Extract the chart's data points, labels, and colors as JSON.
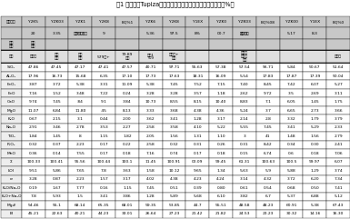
{
  "title": "表1 玻利维亚Tupiza铜矿火山岩主量元素组成及其特征参数（%）",
  "sample_row1": [
    "岩性编号",
    "Y2K5",
    "YZK03",
    "YZK1",
    "Y2K8",
    "BQ%1",
    "YZK6",
    "Y2K8",
    "Y1EX",
    "YZK0",
    "YZK03",
    "BQ%08",
    "YZK00",
    "Y1EX",
    "BQ%0"
  ],
  "sample_row2": [
    "",
    "20",
    "3.35",
    "9.13",
    "9",
    "",
    "5.36",
    "97.5",
    "8%",
    "00.7",
    "2.21",
    "",
    "5.17",
    "8.3",
    ""
  ],
  "sample_row3_col0": "岩石\n类型",
  "sample_row3_col0b": "玄武\n岩样",
  "group_left_label": "安山流纹岩组",
  "group_right_label": "流纹岩组",
  "subhdr": [
    "岩石",
    "矿化号",
    "氧化\n矿化",
    "矿化\n矿化",
    "579矿+",
    "79.89\n矿化",
    "试样1\n5.9",
    "矿化矿+\n矿化",
    "稀氧火元矿化矿化",
    "矿化矿"
  ],
  "col_subhdr": [
    "岩石",
    "矿化号",
    "氧化\n矿化",
    "矿化\n矿化",
    "579矿+",
    "79.89\n矿化",
    "试样1\n5.9",
    "矿化矿+\n矿化",
    "",
    "",
    "稀氧火\n元矿化\n矿化",
    "",
    "",
    "",
    "矿化矿"
  ],
  "row_labels": [
    "SiO₂",
    "Al₂O₃",
    "FeO₁",
    "FeO",
    "CaO",
    "MgO",
    "K₂O",
    "Na₂O",
    "TiO₂",
    "P₂O₅",
    "MnO",
    "Σ",
    "LOI",
    "σ",
    "K₂O/Na₂O",
    "K₂O+Na₂O",
    "Mg#",
    "BI"
  ],
  "data_values": [
    [
      "47.86",
      "47.45",
      "47.17",
      "47.41",
      "47.57",
      "40.71",
      "97.71",
      "95.63",
      "57.38",
      "57.54",
      "56.71",
      "5.84",
      "50.67",
      "51.64"
    ],
    [
      "17.96",
      "16.73",
      "15.68",
      "6.35",
      "17.10",
      "17.73",
      "17.63",
      "18.31",
      "16.09",
      "5.54",
      "17.83",
      "17.87",
      "17.39",
      "50.04"
    ],
    [
      "3.87",
      "3.72",
      "5.38",
      "3.31",
      "11.09",
      "5.38",
      "7.45",
      "7.52",
      "7.15",
      "7.40",
      "8.45",
      "7.42",
      "6.07",
      "5.27"
    ],
    [
      "7.16",
      "1.52",
      "3.48",
      "7.22",
      "0.24",
      "3.28",
      "3.28",
      "3.57",
      "1.18",
      "2.62",
      "9.72",
      "3.5",
      "2.69",
      "3.11"
    ],
    [
      "9.74",
      "7.45",
      ".84",
      "9.1",
      "3.84",
      "10.73",
      "8.55",
      "8.15",
      "10.40",
      "8.83",
      "7.1",
      "6.05",
      "1.45",
      "1.75"
    ],
    [
      "11.07",
      "6.84",
      "11.80",
      ".45",
      "8.13",
      "3.33",
      "3.68",
      "4.38",
      "4.36",
      "5.24",
      "3.7",
      "6.65",
      "2.73",
      "3.66"
    ],
    [
      "0.67",
      "2.15",
      "3.1",
      "0.44",
      "2.00",
      "3.62",
      "3.41",
      "1.28",
      "3.17",
      "2.14",
      "2.8",
      "3.32",
      "1.79",
      "3.79"
    ],
    [
      "2.91",
      "3.46",
      "2.78",
      "3.53",
      "2.27",
      "2.58",
      "3.58",
      "4.10",
      "5.22",
      "5.55",
      "7.45",
      "3.41",
      "5.29",
      "2.33"
    ],
    [
      "1.84",
      "1.45",
      "8",
      "1.15",
      "1.82",
      "2.05",
      "1.56",
      "1.31",
      "1.10",
      "3",
      "41",
      "1.48",
      "1.56",
      "2.79"
    ],
    [
      "0.32",
      "0.37",
      "2.23",
      "0.17",
      "0.22",
      "2.58",
      "0.32",
      "0.31",
      "0.26",
      "0.31",
      "8.42",
      "0.34",
      "0.30",
      "2.41"
    ],
    [
      "0.36",
      "0.14",
      "7.55",
      "0.17",
      "0.18",
      "7.16",
      "0.74",
      "0.17",
      "0.18",
      "0.15",
      "6.74",
      "0.6",
      "0.18",
      "7.06"
    ],
    [
      "100.33",
      "100.41",
      "95.56",
      "100.44",
      "100.1",
      "11.45",
      "100.91",
      "00.09",
      "99.45",
      "61.31",
      "100.63",
      "100.5",
      "99.97",
      "6.07"
    ],
    [
      "9.51",
      "5.86",
      "7.65",
      "7.8",
      "3.63",
      "1.58",
      "10.12",
      "9.65",
      "1.34",
      "5.63",
      "5.9",
      "5.88",
      "1.29",
      "3.74"
    ],
    [
      "3.28",
      "0.87",
      "2.23",
      "1.57",
      "3.17",
      "4.02",
      "4.38",
      "4.23",
      "4.24",
      "3.14",
      "4.32",
      "3.72",
      "6.20",
      "7.34"
    ],
    [
      "0.19",
      "1.67",
      "7.77",
      "0.16",
      "1.15",
      "7.45",
      "0.51",
      "0.39",
      "0.80",
      "0.61",
      "0.54",
      "0.68",
      "0.50",
      "7.41"
    ],
    [
      "7.8",
      "5.93",
      "1.5",
      "3.41",
      "3.86",
      "1.28",
      "5.89",
      "5.68",
      "6.10",
      "3.82",
      "6.7",
      "5.37",
      "6.88",
      "5.12"
    ],
    [
      "54.46",
      "55.1",
      "68.14",
      "65.35",
      "68.01",
      "59.35",
      "53.85",
      "44.7",
      "55.51",
      "48.58",
      "48.23",
      "60.91",
      "5.38",
      "67.43"
    ],
    [
      "45.21",
      "22.63",
      "40.21",
      "44.23",
      "33.01",
      "26.64",
      "27.23",
      "21.42",
      "21.82",
      "24.53",
      "23.23",
      "30.32",
      "14.16",
      "16.30"
    ]
  ],
  "header_bg": "#c8c8c8",
  "subheader_bg": "#e0e0e0",
  "row_label_bg": "#eeeeee",
  "cell_bg": "#ffffff",
  "line_color": "#000000",
  "title_fontsize": 4.8,
  "header_fontsize": 3.2,
  "cell_fontsize": 3.2
}
